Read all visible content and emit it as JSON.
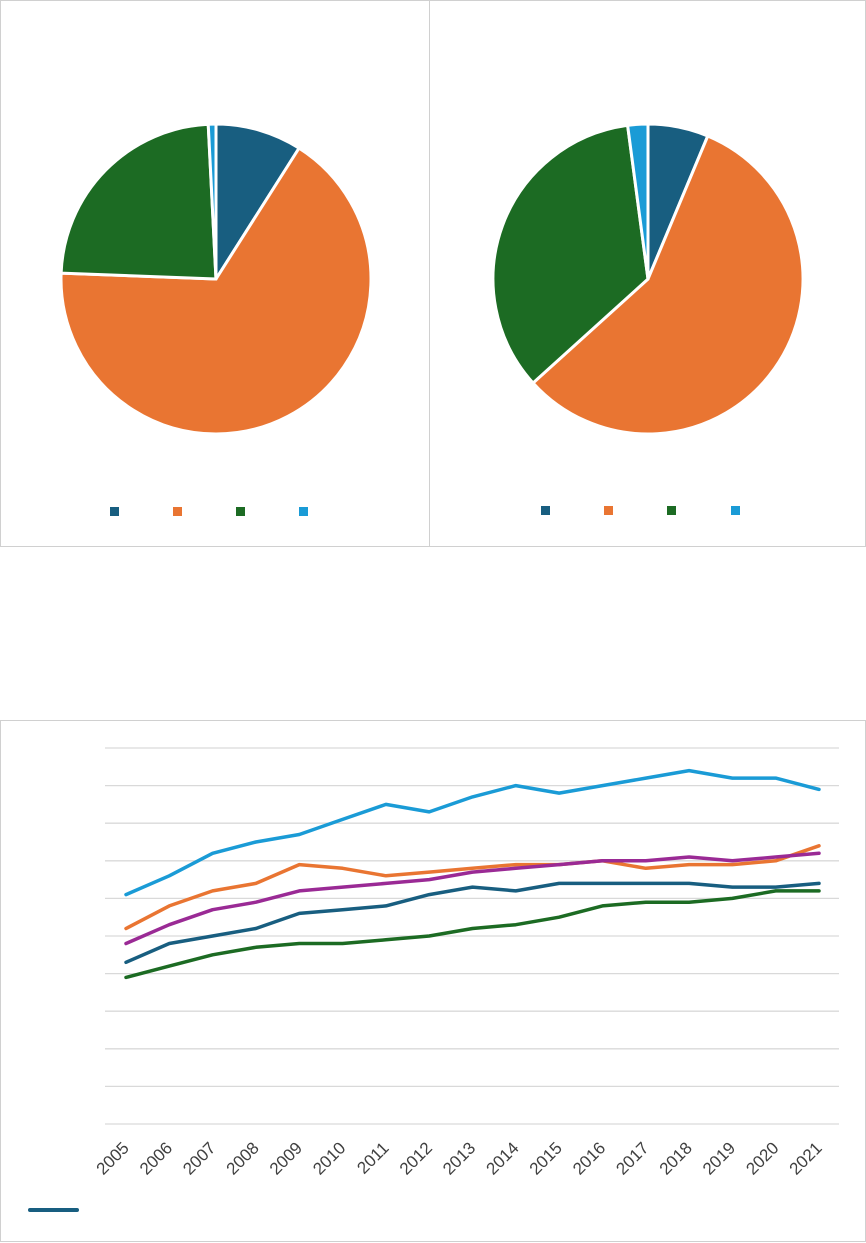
{
  "colors": {
    "dark_blue": "#185e80",
    "orange": "#e97532",
    "green": "#1c6b23",
    "light_blue": "#1a9bd6",
    "purple": "#9a2a95",
    "gridline": "#d9d9d9",
    "panel_border": "#d0d0d0"
  },
  "chart_data": [
    {
      "type": "pie",
      "start_angle_deg": 0,
      "direction": "clockwise",
      "slices": [
        {
          "name": "",
          "value": 9.0,
          "color": "#185e80"
        },
        {
          "name": "",
          "value": 66.6,
          "color": "#e97532"
        },
        {
          "name": "",
          "value": 23.6,
          "color": "#1c6b23"
        },
        {
          "name": "",
          "value": 0.8,
          "color": "#1a9bd6"
        }
      ],
      "legend": "bottom"
    },
    {
      "type": "pie",
      "start_angle_deg": 0,
      "direction": "clockwise",
      "slices": [
        {
          "name": "",
          "value": 6.3,
          "color": "#185e80"
        },
        {
          "name": "",
          "value": 57.0,
          "color": "#e97532"
        },
        {
          "name": "",
          "value": 34.6,
          "color": "#1c6b23"
        },
        {
          "name": "",
          "value": 2.1,
          "color": "#1a9bd6"
        }
      ],
      "legend": "bottom"
    },
    {
      "type": "line",
      "x": [
        "2005",
        "2006",
        "2007",
        "2008",
        "2009",
        "2010",
        "2011",
        "2012",
        "2013",
        "2014",
        "2015",
        "2016",
        "2017",
        "2018",
        "2019",
        "2020",
        "2021"
      ],
      "ylim": [
        0,
        10
      ],
      "grid": true,
      "gridlines": 11,
      "legend": "bottom-left",
      "series": [
        {
          "name": "",
          "color": "#1a9bd6",
          "values": [
            6.1,
            6.6,
            7.2,
            7.5,
            7.7,
            8.1,
            8.5,
            8.3,
            8.7,
            9.0,
            8.8,
            9.0,
            9.2,
            9.4,
            9.2,
            9.2,
            8.9
          ]
        },
        {
          "name": "",
          "color": "#e97532",
          "values": [
            5.2,
            5.8,
            6.2,
            6.4,
            6.9,
            6.8,
            6.6,
            6.7,
            6.8,
            6.9,
            6.9,
            7.0,
            6.8,
            6.9,
            6.9,
            7.0,
            7.4
          ]
        },
        {
          "name": "",
          "color": "#9a2a95",
          "values": [
            4.8,
            5.3,
            5.7,
            5.9,
            6.2,
            6.3,
            6.4,
            6.5,
            6.7,
            6.8,
            6.9,
            7.0,
            7.0,
            7.1,
            7.0,
            7.1,
            7.2
          ]
        },
        {
          "name": "",
          "color": "#185e80",
          "values": [
            4.3,
            4.8,
            5.0,
            5.2,
            5.6,
            5.7,
            5.8,
            6.1,
            6.3,
            6.2,
            6.4,
            6.4,
            6.4,
            6.4,
            6.3,
            6.3,
            6.4
          ]
        },
        {
          "name": "",
          "color": "#1c6b23",
          "values": [
            3.9,
            4.2,
            4.5,
            4.7,
            4.8,
            4.8,
            4.9,
            5.0,
            5.2,
            5.3,
            5.5,
            5.8,
            5.9,
            5.9,
            6.0,
            6.2,
            6.2
          ]
        }
      ]
    }
  ]
}
